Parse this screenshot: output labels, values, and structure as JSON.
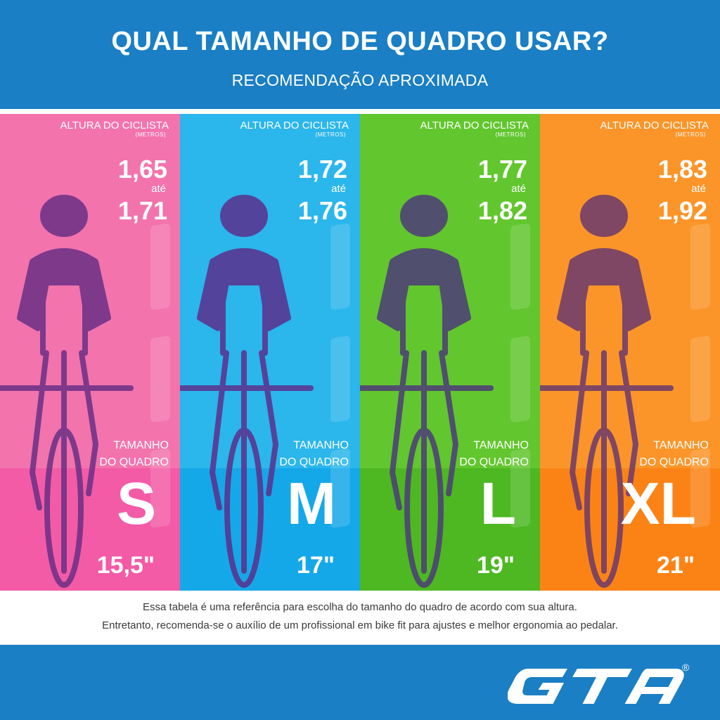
{
  "header": {
    "title": "QUAL TAMANHO DE QUADRO USAR?",
    "subtitle": "RECOMENDAÇÃO APROXIMADA"
  },
  "columns": [
    {
      "label": "ALTURA DO CICLISTA",
      "unit": "(METROS)",
      "from": "1,65",
      "connector": "até",
      "to": "1,71",
      "frame_label_1": "TAMANHO",
      "frame_label_2": "DO QUADRO",
      "size": "S",
      "inches": "15,5\"",
      "color": "#f373ad"
    },
    {
      "label": "ALTURA DO CICLISTA",
      "unit": "(METROS)",
      "from": "1,72",
      "connector": "até",
      "to": "1,76",
      "frame_label_1": "TAMANHO",
      "frame_label_2": "DO QUADRO",
      "size": "M",
      "inches": "17\"",
      "color": "#2bb6ec"
    },
    {
      "label": "ALTURA DO CICLISTA",
      "unit": "(METROS)",
      "from": "1,77",
      "connector": "até",
      "to": "1,82",
      "frame_label_1": "TAMANHO",
      "frame_label_2": "DO QUADRO",
      "size": "L",
      "inches": "19\"",
      "color": "#62c62e"
    },
    {
      "label": "ALTURA DO CICLISTA",
      "unit": "(METROS)",
      "from": "1,83",
      "connector": "até",
      "to": "1,92",
      "frame_label_1": "TAMANHO",
      "frame_label_2": "DO QUADRO",
      "size": "XL",
      "inches": "21\"",
      "color": "#fb9529"
    }
  ],
  "note": {
    "line1": "Essa tabela é uma referência para escolha do tamanho do quadro de acordo com sua altura.",
    "line2": "Entretanto, recomenda-se o auxílio de um profissional em bike fit para ajustes e melhor ergonomia ao pedalar."
  },
  "footer": {
    "brand": "GTA",
    "registered": "®"
  }
}
